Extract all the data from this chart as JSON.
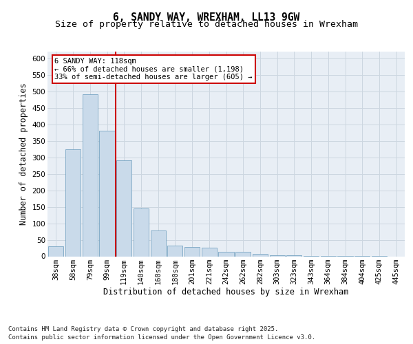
{
  "title_line1": "6, SANDY WAY, WREXHAM, LL13 9GW",
  "title_line2": "Size of property relative to detached houses in Wrexham",
  "xlabel": "Distribution of detached houses by size in Wrexham",
  "ylabel": "Number of detached properties",
  "bins": [
    "38sqm",
    "58sqm",
    "79sqm",
    "99sqm",
    "119sqm",
    "140sqm",
    "160sqm",
    "180sqm",
    "201sqm",
    "221sqm",
    "242sqm",
    "262sqm",
    "282sqm",
    "303sqm",
    "323sqm",
    "343sqm",
    "364sqm",
    "384sqm",
    "404sqm",
    "425sqm",
    "445sqm"
  ],
  "values": [
    30,
    325,
    490,
    380,
    290,
    145,
    78,
    32,
    28,
    27,
    14,
    13,
    7,
    3,
    3,
    1,
    1,
    1,
    1,
    1,
    0
  ],
  "bar_color": "#c9daea",
  "bar_edge_color": "#6699bb",
  "vline_pos": 3.5,
  "vline_color": "#cc0000",
  "annotation_lines": [
    "6 SANDY WAY: 118sqm",
    "← 66% of detached houses are smaller (1,198)",
    "33% of semi-detached houses are larger (605) →"
  ],
  "annotation_box_facecolor": "#ffffff",
  "annotation_box_edgecolor": "#cc0000",
  "ylim": [
    0,
    620
  ],
  "yticks": [
    0,
    50,
    100,
    150,
    200,
    250,
    300,
    350,
    400,
    450,
    500,
    550,
    600
  ],
  "grid_color": "#ccd6e0",
  "background_color": "#e8eef5",
  "footer": "Contains HM Land Registry data © Crown copyright and database right 2025.\nContains public sector information licensed under the Open Government Licence v3.0.",
  "title_fontsize": 10.5,
  "subtitle_fontsize": 9.5,
  "axis_label_fontsize": 8.5,
  "tick_fontsize": 7.5,
  "annotation_fontsize": 7.5,
  "footer_fontsize": 6.5
}
